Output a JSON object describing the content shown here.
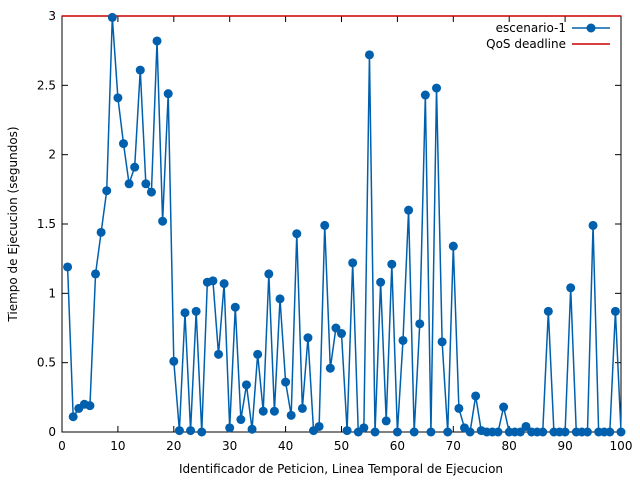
{
  "chart_data": {
    "type": "line",
    "xlabel": "Identificador de Peticion, Linea Temporal de Ejecucion",
    "ylabel": "Tiempo de Ejecucion (segundos)",
    "xlim": [
      0,
      100
    ],
    "ylim": [
      0,
      3
    ],
    "x_ticks": [
      "0",
      "10",
      "20",
      "30",
      "40",
      "50",
      "60",
      "70",
      "80",
      "90",
      "100"
    ],
    "y_ticks": [
      "0",
      "0.5",
      "1",
      "1.5",
      "2",
      "2.5",
      "3"
    ],
    "grid": false,
    "legend_position": "top-right",
    "series": [
      {
        "name": "escenario-1",
        "color": "#0060ad",
        "marker": "circle",
        "x": [
          1,
          2,
          3,
          4,
          5,
          6,
          7,
          8,
          9,
          10,
          11,
          12,
          13,
          14,
          15,
          16,
          17,
          18,
          19,
          20,
          21,
          22,
          23,
          24,
          25,
          26,
          27,
          28,
          29,
          30,
          31,
          32,
          33,
          34,
          35,
          36,
          37,
          38,
          39,
          40,
          41,
          42,
          43,
          44,
          45,
          46,
          47,
          48,
          49,
          50,
          51,
          52,
          53,
          54,
          55,
          56,
          57,
          58,
          59,
          60,
          61,
          62,
          63,
          64,
          65,
          66,
          67,
          68,
          69,
          70,
          71,
          72,
          73,
          74,
          75,
          76,
          77,
          78,
          79,
          80,
          81,
          82,
          83,
          84,
          85,
          86,
          87,
          88,
          89,
          90,
          91,
          92,
          93,
          94,
          95,
          96,
          97,
          98,
          99,
          100
        ],
        "y": [
          1.19,
          0.11,
          0.17,
          0.2,
          0.19,
          1.14,
          1.44,
          1.74,
          2.99,
          2.41,
          2.08,
          1.79,
          1.91,
          2.61,
          1.79,
          1.73,
          2.82,
          1.52,
          2.44,
          0.51,
          0.01,
          0.86,
          0.01,
          0.87,
          0.0,
          1.08,
          1.09,
          0.56,
          1.07,
          0.03,
          0.9,
          0.09,
          0.34,
          0.02,
          0.56,
          0.15,
          1.14,
          0.15,
          0.96,
          0.36,
          0.12,
          1.43,
          0.17,
          0.68,
          0.01,
          0.04,
          1.49,
          0.46,
          0.75,
          0.71,
          0.01,
          1.22,
          0.0,
          0.03,
          2.72,
          0.0,
          1.08,
          0.08,
          1.21,
          0.0,
          0.66,
          1.6,
          0.0,
          0.78,
          2.43,
          0.0,
          2.48,
          0.65,
          0.0,
          1.34,
          0.17,
          0.03,
          0.0,
          0.26,
          0.01,
          0.0,
          0.0,
          0.0,
          0.18,
          0.0,
          0.0,
          0.0,
          0.04,
          0.0,
          0.0,
          0.0,
          0.87,
          0.0,
          0.0,
          0.0,
          1.04,
          0.0,
          0.0,
          0.0,
          1.49,
          0.0,
          0.0,
          0.0,
          0.87,
          0.0
        ]
      },
      {
        "name": "QoS deadline",
        "color": "#cc0000",
        "x": [
          0,
          100
        ],
        "y": [
          3,
          3
        ]
      }
    ]
  }
}
